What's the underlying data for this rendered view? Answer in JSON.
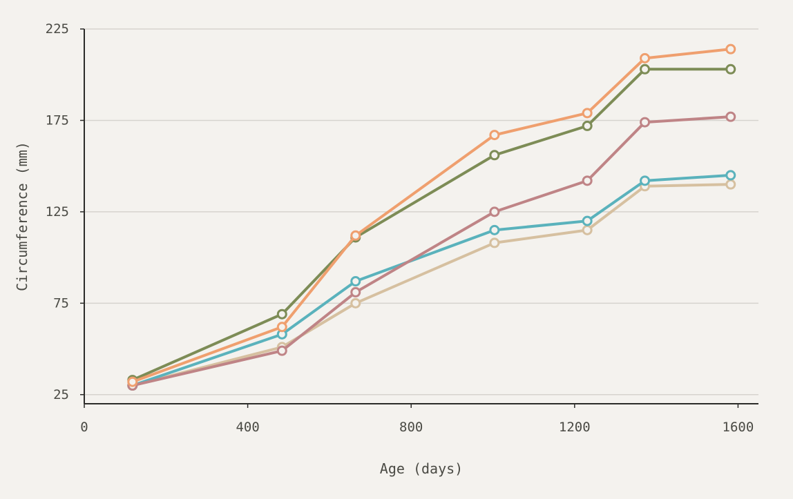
{
  "chart_data": {
    "type": "line",
    "title": "",
    "xlabel": "Age (days)",
    "ylabel": "Circumference (mm)",
    "xlim": [
      0,
      1650
    ],
    "ylim": [
      20,
      225
    ],
    "x_ticks": [
      0,
      400,
      800,
      1200,
      1600
    ],
    "y_ticks": [
      25,
      75,
      125,
      175,
      225
    ],
    "grid": "horizontal",
    "legend": "none",
    "x": [
      118,
      484,
      664,
      1004,
      1231,
      1372,
      1582
    ],
    "series": [
      {
        "color": "#ef9f6e",
        "values": [
          32,
          62,
          112,
          167,
          179,
          209,
          214
        ]
      },
      {
        "color": "#7d8c56",
        "values": [
          33,
          69,
          111,
          156,
          172,
          203,
          203
        ]
      },
      {
        "color": "#bf8486",
        "values": [
          30,
          49,
          81,
          125,
          142,
          174,
          177
        ]
      },
      {
        "color": "#5ab2bc",
        "values": [
          30,
          58,
          87,
          115,
          120,
          142,
          145
        ]
      },
      {
        "color": "#d6c0a0",
        "values": [
          30,
          51,
          75,
          108,
          115,
          139,
          140
        ]
      }
    ]
  }
}
